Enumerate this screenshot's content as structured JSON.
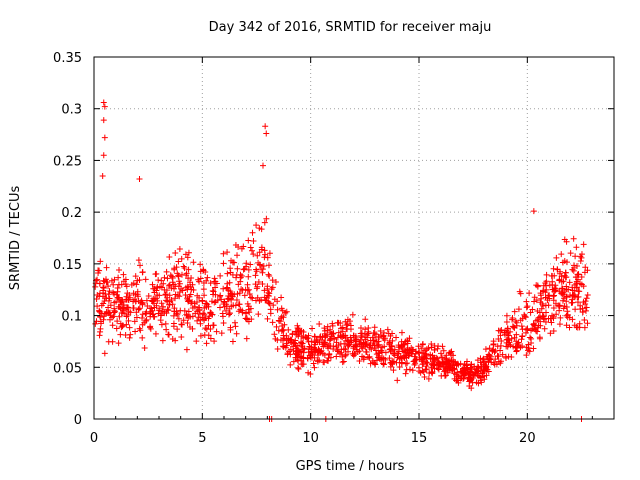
{
  "chart_data": {
    "type": "scatter",
    "title": "Day 342 of 2016, SRMTID for receiver maju",
    "xlabel": "GPS time / hours",
    "ylabel": "SRMTID / TECUs",
    "xlim": [
      0,
      24
    ],
    "ylim": [
      0,
      0.35
    ],
    "xticks": [
      0,
      5,
      10,
      15,
      20
    ],
    "xtick_labels": [
      "0",
      "5",
      "10",
      "15",
      "20"
    ],
    "yticks": [
      0,
      0.05,
      0.1,
      0.15,
      0.2,
      0.25,
      0.3,
      0.35
    ],
    "ytick_labels": [
      "0",
      "0.05",
      "0.1",
      "0.15",
      "0.2",
      "0.25",
      "0.3",
      "0.35"
    ],
    "grid": true,
    "marker": "plus",
    "color": "#ff0000",
    "time_range_hours": [
      0.05,
      22.8
    ],
    "trend": {
      "hours": [
        0,
        1,
        2,
        3,
        4,
        5,
        6,
        7,
        7.8,
        8.4,
        9,
        10,
        11,
        12,
        13,
        14,
        15,
        16,
        17,
        17.7,
        18.5,
        19,
        20,
        21,
        22,
        22.8
      ],
      "median": [
        0.12,
        0.11,
        0.115,
        0.11,
        0.125,
        0.11,
        0.115,
        0.13,
        0.15,
        0.1,
        0.075,
        0.065,
        0.075,
        0.075,
        0.07,
        0.065,
        0.06,
        0.055,
        0.045,
        0.045,
        0.065,
        0.075,
        0.09,
        0.12,
        0.13,
        0.12
      ]
    },
    "peaks": [
      {
        "x": 0.45,
        "y": 0.306
      },
      {
        "x": 0.5,
        "y": 0.302
      },
      {
        "x": 0.45,
        "y": 0.289
      },
      {
        "x": 0.5,
        "y": 0.272
      },
      {
        "x": 0.45,
        "y": 0.255
      },
      {
        "x": 0.4,
        "y": 0.235
      },
      {
        "x": 2.1,
        "y": 0.232
      },
      {
        "x": 7.9,
        "y": 0.283
      },
      {
        "x": 7.95,
        "y": 0.276
      },
      {
        "x": 7.8,
        "y": 0.245
      },
      {
        "x": 20.3,
        "y": 0.201
      }
    ],
    "zero_points": [
      8.1,
      8.2,
      10.7,
      22.5
    ]
  }
}
